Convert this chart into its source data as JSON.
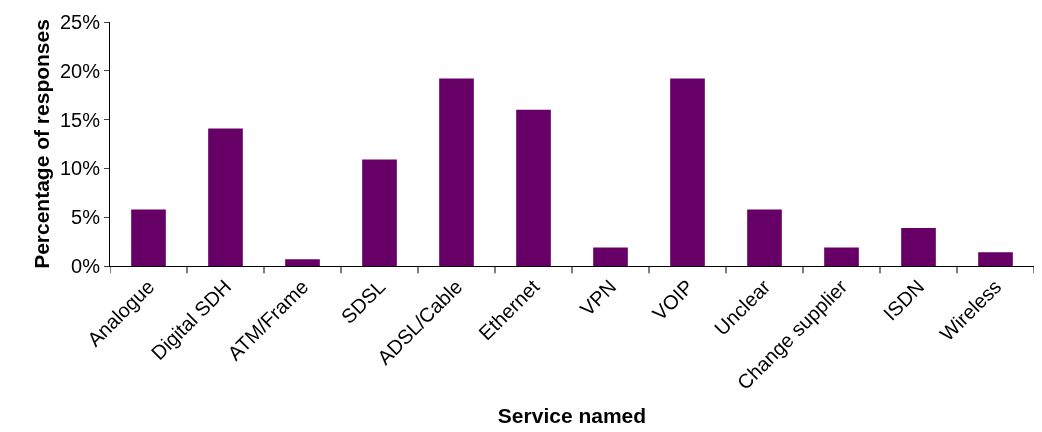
{
  "chart_data": {
    "type": "bar",
    "xlabel": "Service named",
    "ylabel": "Percentage of responses",
    "categories": [
      "Analogue",
      "Digital SDH",
      "ATM/Frame",
      "SDSL",
      "ADSL/Cable",
      "Ethernet",
      "VPN",
      "VOIP",
      "Unclear",
      "Change supplier",
      "ISDN",
      "Wireless"
    ],
    "values": [
      5.8,
      14.1,
      0.7,
      10.9,
      19.2,
      16.0,
      1.9,
      19.2,
      5.8,
      1.9,
      3.9,
      1.4
    ],
    "color": "#660066",
    "ylim": [
      0,
      25
    ],
    "yticks": [
      {
        "value": 0,
        "label": "0%"
      },
      {
        "value": 5,
        "label": "5%"
      },
      {
        "value": 10,
        "label": "10%"
      },
      {
        "value": 15,
        "label": "15%"
      },
      {
        "value": 20,
        "label": "20%"
      },
      {
        "value": 25,
        "label": "25%"
      }
    ],
    "grid": false
  }
}
